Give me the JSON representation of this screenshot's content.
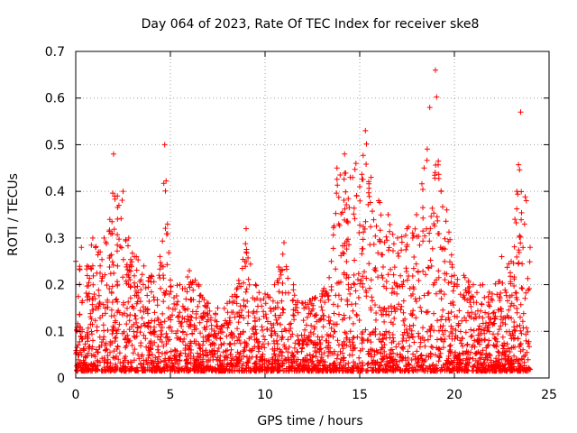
{
  "chart_data": {
    "type": "scatter",
    "title": "Day 064 of 2023, Rate Of TEC Index for receiver ske8",
    "xlabel": "GPS time / hours",
    "ylabel": "ROTI / TECUs",
    "xlim": [
      0,
      25
    ],
    "ylim": [
      0,
      0.7
    ],
    "xticks": [
      0,
      5,
      10,
      15,
      20,
      25
    ],
    "xtick_labels": [
      "0",
      "5",
      "10",
      "15",
      "20",
      "25"
    ],
    "yticks": [
      0,
      0.1,
      0.2,
      0.3,
      0.4,
      0.5,
      0.6,
      0.7
    ],
    "ytick_labels": [
      "0",
      "0.1",
      "0.2",
      "0.3",
      "0.4",
      "0.5",
      "0.6",
      "0.7"
    ],
    "grid": true,
    "marker": "+",
    "series": [
      {
        "name": "ROTI",
        "color": "#ff0000",
        "envelope": [
          [
            0.0,
            0.25
          ],
          [
            0.3,
            0.28
          ],
          [
            0.6,
            0.24
          ],
          [
            0.9,
            0.3
          ],
          [
            1.2,
            0.27
          ],
          [
            1.5,
            0.3
          ],
          [
            1.8,
            0.34
          ],
          [
            2.0,
            0.48
          ],
          [
            2.2,
            0.39
          ],
          [
            2.5,
            0.4
          ],
          [
            2.8,
            0.3
          ],
          [
            3.2,
            0.26
          ],
          [
            3.6,
            0.24
          ],
          [
            4.0,
            0.22
          ],
          [
            4.4,
            0.22
          ],
          [
            4.7,
            0.5
          ],
          [
            5.0,
            0.21
          ],
          [
            5.5,
            0.2
          ],
          [
            6.0,
            0.23
          ],
          [
            6.5,
            0.2
          ],
          [
            7.0,
            0.16
          ],
          [
            7.5,
            0.15
          ],
          [
            8.0,
            0.16
          ],
          [
            8.5,
            0.19
          ],
          [
            9.0,
            0.32
          ],
          [
            9.5,
            0.2
          ],
          [
            10.0,
            0.18
          ],
          [
            10.5,
            0.2
          ],
          [
            11.0,
            0.29
          ],
          [
            11.5,
            0.2
          ],
          [
            12.0,
            0.16
          ],
          [
            12.5,
            0.17
          ],
          [
            13.0,
            0.18
          ],
          [
            13.5,
            0.25
          ],
          [
            13.8,
            0.45
          ],
          [
            14.2,
            0.48
          ],
          [
            14.5,
            0.43
          ],
          [
            14.8,
            0.46
          ],
          [
            15.0,
            0.41
          ],
          [
            15.3,
            0.53
          ],
          [
            15.6,
            0.43
          ],
          [
            16.0,
            0.38
          ],
          [
            16.5,
            0.35
          ],
          [
            17.0,
            0.3
          ],
          [
            17.5,
            0.32
          ],
          [
            18.0,
            0.35
          ],
          [
            18.4,
            0.45
          ],
          [
            18.7,
            0.58
          ],
          [
            19.0,
            0.66
          ],
          [
            19.3,
            0.4
          ],
          [
            19.6,
            0.36
          ],
          [
            20.0,
            0.22
          ],
          [
            20.5,
            0.22
          ],
          [
            21.0,
            0.2
          ],
          [
            21.5,
            0.2
          ],
          [
            22.0,
            0.18
          ],
          [
            22.5,
            0.26
          ],
          [
            23.0,
            0.25
          ],
          [
            23.3,
            0.4
          ],
          [
            23.5,
            0.57
          ],
          [
            23.8,
            0.38
          ],
          [
            24.0,
            0.28
          ]
        ],
        "baseline": 0.015,
        "n_points": 3200
      }
    ]
  }
}
